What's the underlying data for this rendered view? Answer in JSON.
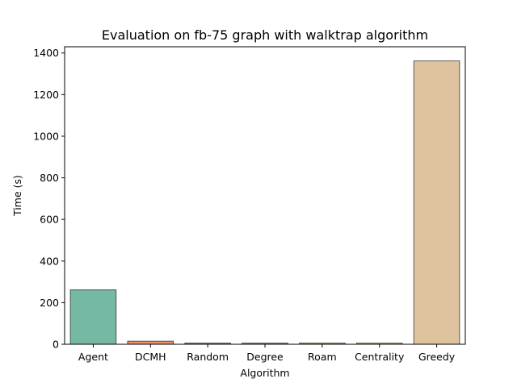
{
  "chart_data": {
    "type": "bar",
    "title": "Evaluation on fb-75 graph with walktrap algorithm",
    "xlabel": "Algorithm",
    "ylabel": "Time (s)",
    "categories": [
      "Agent",
      "DCMH",
      "Random",
      "Degree",
      "Roam",
      "Centrality",
      "Greedy"
    ],
    "values": [
      262,
      15,
      6,
      6,
      6,
      6,
      1362
    ],
    "colors": [
      "#75b8a3",
      "#ec8f6c",
      "#8d9bc5",
      "#d694bd",
      "#a3cf6e",
      "#ecd166",
      "#ddc39e"
    ],
    "yticks": [
      0,
      200,
      400,
      600,
      800,
      1000,
      1200,
      1400
    ],
    "ylim": [
      0,
      1430
    ],
    "grid": false,
    "legend": "none"
  }
}
